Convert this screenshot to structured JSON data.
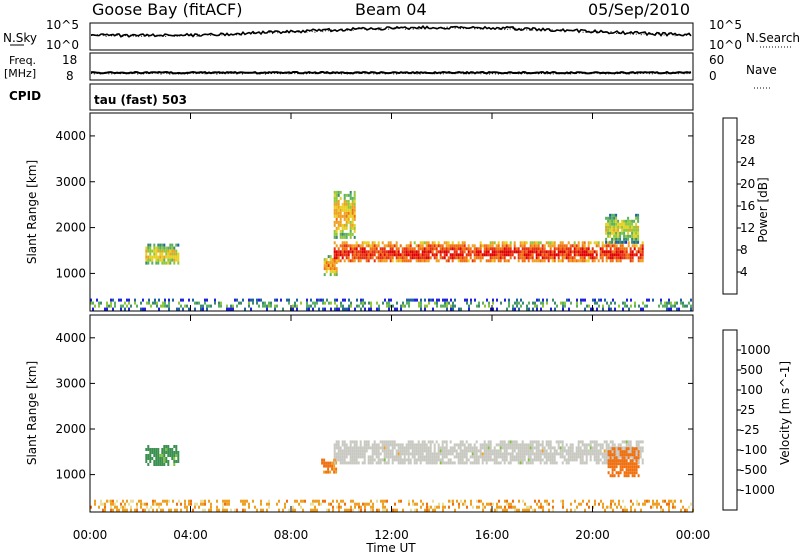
{
  "header": {
    "station": "Goose Bay (fitACF)",
    "beam": "Beam 04",
    "date": "05/Sep/2010"
  },
  "aux_panels": {
    "nsky_label": "N.Sky",
    "nsky_ticks": [
      "10^5",
      "10^0"
    ],
    "nsearch_label": "N.Search",
    "nsearch_ticks": [
      "10^5",
      "10^0"
    ],
    "freq_label": "Freq.",
    "freq_unit": "[MHz]",
    "freq_ticks": [
      "18",
      "8"
    ],
    "nave_label": "Nave",
    "nave_ticks": [
      "60",
      "0"
    ],
    "cpid_label": "CPID",
    "cpid_value": "tau (fast) 503"
  },
  "colors": {
    "power_scale": [
      "#2020e0",
      "#2060a8",
      "#3a8a70",
      "#58b060",
      "#90c838",
      "#e8d020",
      "#f0a020",
      "#f07010",
      "#e83010",
      "#e00000"
    ],
    "velocity_scale": [
      "#e00000",
      "#e83a10",
      "#f07010",
      "#f0a020",
      "#e8e0a0",
      "#c8c8c0",
      "#80c040",
      "#3a9050",
      "#2a6aa8",
      "#2020e0"
    ],
    "ground_scatter": "#c8c8c0"
  },
  "chart_data": [
    {
      "type": "heatmap",
      "name": "power",
      "ylabel": "Slant Range [km]",
      "xlabel": "Time UT",
      "xlim": [
        0,
        24
      ],
      "ylim": [
        180,
        4500
      ],
      "yticks": [
        1000,
        2000,
        3000,
        4000
      ],
      "xtick_labels": [
        "00:00",
        "04:00",
        "08:00",
        "12:00",
        "16:00",
        "20:00",
        "00:00"
      ],
      "colorbar_label": "Power [dB]",
      "colorbar_ticks": [
        "4",
        "8",
        "12",
        "16",
        "20",
        "24",
        "28"
      ],
      "regions": [
        {
          "t": [
            2.2,
            3.5
          ],
          "range": [
            1200,
            1650
          ],
          "level": 12
        },
        {
          "t": [
            9.3,
            9.8
          ],
          "range": [
            1000,
            1400
          ],
          "level": 16
        },
        {
          "t": [
            9.7,
            22.0
          ],
          "range": [
            1250,
            1700
          ],
          "level": 22
        },
        {
          "t": [
            9.7,
            10.5
          ],
          "range": [
            1800,
            2800
          ],
          "level": 14
        },
        {
          "t": [
            20.5,
            21.8
          ],
          "range": [
            1700,
            2300
          ],
          "level": 10
        },
        {
          "t": [
            0,
            24
          ],
          "range": [
            250,
            450
          ],
          "level": 6
        }
      ]
    },
    {
      "type": "heatmap",
      "name": "velocity",
      "ylabel": "Slant Range [km]",
      "xlabel": "Time UT",
      "xlim": [
        0,
        24
      ],
      "ylim": [
        180,
        4500
      ],
      "yticks": [
        1000,
        2000,
        3000,
        4000
      ],
      "xtick_labels": [
        "00:00",
        "04:00",
        "08:00",
        "12:00",
        "16:00",
        "20:00",
        "00:00"
      ],
      "colorbar_label": "Velocity [m s^-1]",
      "colorbar_ticks": [
        "1000",
        "500",
        "100",
        "25",
        "-25",
        "-100",
        "-500",
        "-1000"
      ],
      "regions": [
        {
          "t": [
            2.2,
            3.5
          ],
          "range": [
            1250,
            1650
          ],
          "velocity": 150
        },
        {
          "t": [
            9.2,
            9.8
          ],
          "range": [
            1050,
            1350
          ],
          "velocity": -120
        },
        {
          "t": [
            9.7,
            22.0
          ],
          "range": [
            1250,
            1750
          ],
          "velocity": 0
        },
        {
          "t": [
            20.6,
            21.8
          ],
          "range": [
            1000,
            1600
          ],
          "velocity": -300
        },
        {
          "t": [
            0,
            24
          ],
          "range": [
            250,
            450
          ],
          "velocity": -60
        }
      ]
    }
  ]
}
